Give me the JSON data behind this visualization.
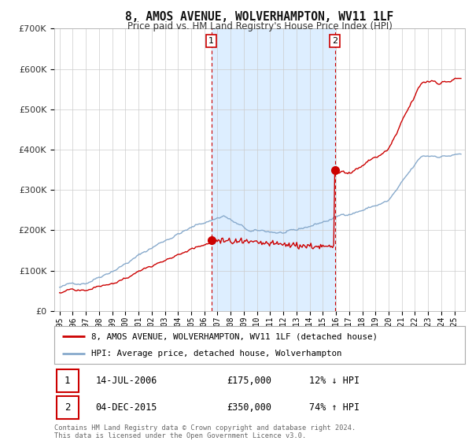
{
  "title": "8, AMOS AVENUE, WOLVERHAMPTON, WV11 1LF",
  "subtitle": "Price paid vs. HM Land Registry's House Price Index (HPI)",
  "legend_property": "8, AMOS AVENUE, WOLVERHAMPTON, WV11 1LF (detached house)",
  "legend_hpi": "HPI: Average price, detached house, Wolverhampton",
  "purchase1_date": "14-JUL-2006",
  "purchase1_price": 175000,
  "purchase1_label": "£175,000",
  "purchase1_pct": "12% ↓ HPI",
  "purchase2_date": "04-DEC-2015",
  "purchase2_price": 350000,
  "purchase2_label": "£350,000",
  "purchase2_pct": "74% ↑ HPI",
  "purchase1_year": 2006.54,
  "purchase2_year": 2015.92,
  "property_color": "#cc0000",
  "hpi_color": "#88aacc",
  "shade_color": "#ddeeff",
  "grid_color": "#cccccc",
  "background_color": "#ffffff",
  "plot_bg_color": "#ffffff",
  "ylim": [
    0,
    700000
  ],
  "footer": "Contains HM Land Registry data © Crown copyright and database right 2024.\nThis data is licensed under the Open Government Licence v3.0."
}
